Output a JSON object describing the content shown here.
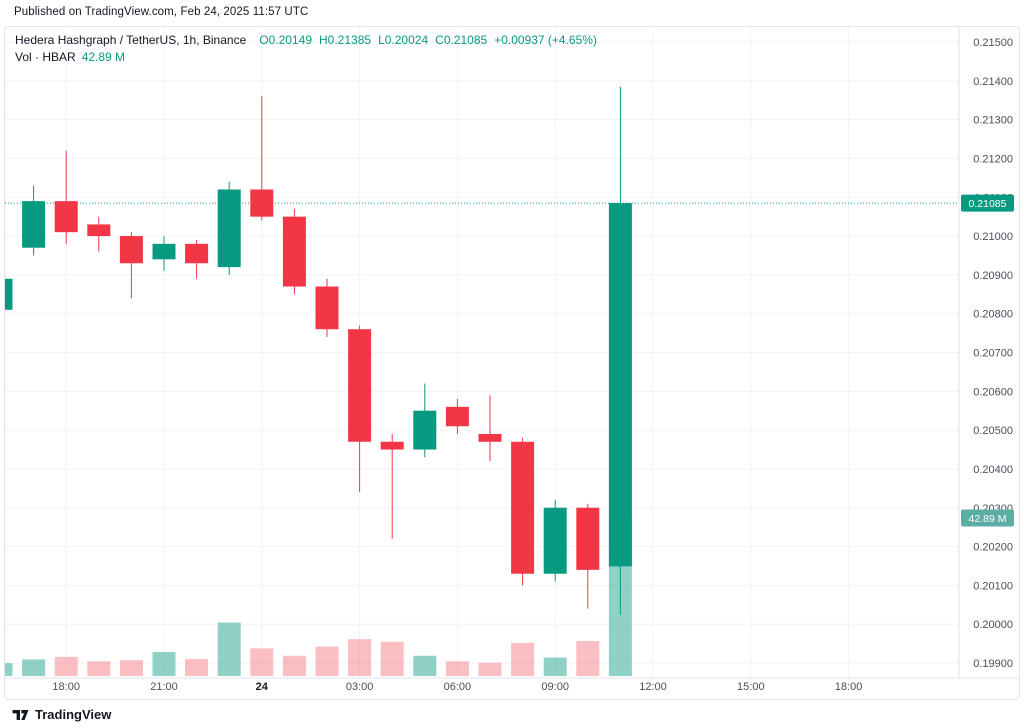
{
  "header": {
    "published": "Published on TradingView.com, Feb 24, 2025 11:57 UTC"
  },
  "legend": {
    "symbol": "Hedera Hashgraph / TetherUS, 1h, Binance",
    "open_label": "O",
    "open": "0.20149",
    "high_label": "H",
    "high": "0.21385",
    "low_label": "L",
    "low": "0.20024",
    "close_label": "C",
    "close": "0.21085",
    "change": "+0.00937 (+4.65%)",
    "volume_label": "Vol · HBAR",
    "volume_value": "42.89 M"
  },
  "footer": {
    "brand": "TradingView"
  },
  "colors": {
    "up": "#089981",
    "down": "#f23645",
    "vol_up": "rgba(8,153,129,0.45)",
    "vol_down": "rgba(242,54,69,0.32)",
    "grid": "#f0f3fa",
    "axis_line": "#e0e3eb",
    "axis_text": "#4a4e59",
    "text_dark": "#131722",
    "price_badge_bg": "#089981",
    "volume_badge_bg": "#5caea4",
    "badge_text": "#ffffff"
  },
  "chart_data": {
    "type": "candlestick",
    "title": "Hedera Hashgraph / TetherUS",
    "exchange": "Binance",
    "interval": "1h",
    "quote_unit": "USDT",
    "volume_unit": "HBAR millions",
    "ylim": [
      0.199,
      0.215
    ],
    "current_price": 0.21085,
    "price_badge_label": "0.21085",
    "volume_badge_label": "42.89 M",
    "price_axis": [
      "0.21500",
      "0.21400",
      "0.21300",
      "0.21200",
      "0.21100",
      "0.21000",
      "0.20900",
      "0.20800",
      "0.20700",
      "0.20600",
      "0.20500",
      "0.20400",
      "0.20300",
      "0.20200",
      "0.20100",
      "0.20000",
      "0.19900"
    ],
    "time_ticks": [
      {
        "label": "18:00",
        "index": 2
      },
      {
        "label": "21:00",
        "index": 5
      },
      {
        "label": "24",
        "index": 8,
        "emphasis": true
      },
      {
        "label": "03:00",
        "index": 11
      },
      {
        "label": "06:00",
        "index": 14
      },
      {
        "label": "09:00",
        "index": 17
      },
      {
        "label": "12:00",
        "index": 20
      },
      {
        "label": "15:00",
        "index": 23
      },
      {
        "label": "18:00",
        "index": 26
      }
    ],
    "candles": [
      {
        "time": "16:00",
        "o": 0.2081,
        "h": 0.209,
        "l": 0.2079,
        "c": 0.2089,
        "v": 3.5
      },
      {
        "time": "17:00",
        "o": 0.2097,
        "h": 0.2113,
        "l": 0.2095,
        "c": 0.2109,
        "v": 4.5
      },
      {
        "time": "18:00",
        "o": 0.2109,
        "h": 0.2122,
        "l": 0.2098,
        "c": 0.2101,
        "v": 5.2
      },
      {
        "time": "19:00",
        "o": 0.2103,
        "h": 0.2105,
        "l": 0.2096,
        "c": 0.21,
        "v": 4.0
      },
      {
        "time": "20:00",
        "o": 0.21,
        "h": 0.2101,
        "l": 0.2084,
        "c": 0.2093,
        "v": 4.3
      },
      {
        "time": "21:00",
        "o": 0.2094,
        "h": 0.21,
        "l": 0.2091,
        "c": 0.2098,
        "v": 6.5
      },
      {
        "time": "22:00",
        "o": 0.2098,
        "h": 0.2099,
        "l": 0.2089,
        "c": 0.2093,
        "v": 4.6
      },
      {
        "time": "23:00",
        "o": 0.2092,
        "h": 0.2114,
        "l": 0.209,
        "c": 0.2112,
        "v": 14.5
      },
      {
        "time": "00:00",
        "o": 0.2112,
        "h": 0.2136,
        "l": 0.2104,
        "c": 0.2105,
        "v": 7.5
      },
      {
        "time": "01:00",
        "o": 0.2105,
        "h": 0.2107,
        "l": 0.2085,
        "c": 0.2087,
        "v": 5.5
      },
      {
        "time": "02:00",
        "o": 0.2087,
        "h": 0.2089,
        "l": 0.2074,
        "c": 0.2076,
        "v": 8.0
      },
      {
        "time": "03:00",
        "o": 0.2076,
        "h": 0.2077,
        "l": 0.2034,
        "c": 0.2047,
        "v": 10.0
      },
      {
        "time": "04:00",
        "o": 0.2047,
        "h": 0.2049,
        "l": 0.2022,
        "c": 0.2045,
        "v": 9.3
      },
      {
        "time": "05:00",
        "o": 0.2045,
        "h": 0.2062,
        "l": 0.2043,
        "c": 0.2055,
        "v": 5.5
      },
      {
        "time": "06:00",
        "o": 0.2056,
        "h": 0.2058,
        "l": 0.2049,
        "c": 0.2051,
        "v": 4.0
      },
      {
        "time": "07:00",
        "o": 0.2049,
        "h": 0.2059,
        "l": 0.2042,
        "c": 0.2047,
        "v": 3.6
      },
      {
        "time": "08:00",
        "o": 0.2047,
        "h": 0.2048,
        "l": 0.201,
        "c": 0.2013,
        "v": 9.0
      },
      {
        "time": "09:00",
        "o": 0.2013,
        "h": 0.2032,
        "l": 0.2011,
        "c": 0.203,
        "v": 5.0
      },
      {
        "time": "10:00",
        "o": 0.203,
        "h": 0.2031,
        "l": 0.2004,
        "c": 0.2014,
        "v": 9.5
      },
      {
        "time": "11:00",
        "o": 0.20149,
        "h": 0.21385,
        "l": 0.20024,
        "c": 0.21085,
        "v": 42.89
      }
    ]
  }
}
